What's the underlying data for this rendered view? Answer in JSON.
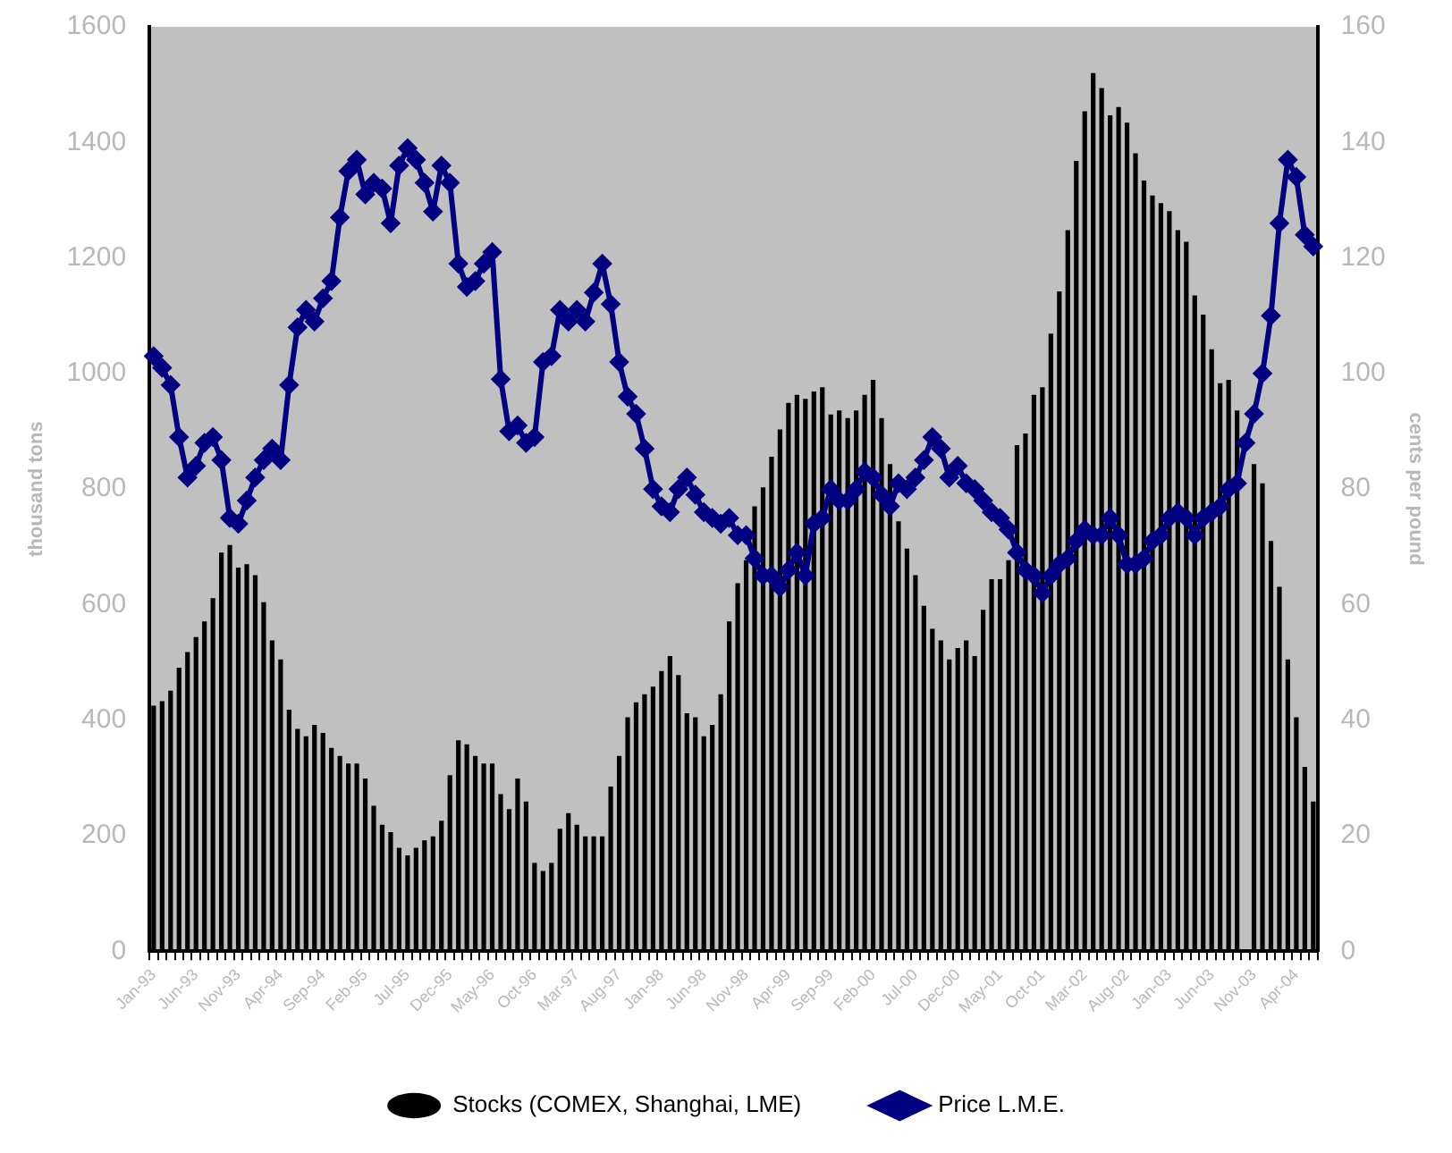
{
  "chart_data": {
    "type": "bar",
    "categories": [
      "Jan-93",
      null,
      null,
      null,
      null,
      "Jun-93",
      null,
      null,
      null,
      null,
      "Nov-93",
      null,
      null,
      null,
      null,
      "Apr-94",
      null,
      null,
      null,
      null,
      "Sep-94",
      null,
      null,
      null,
      null,
      "Feb-95",
      null,
      null,
      null,
      null,
      "Jul-95",
      null,
      null,
      null,
      null,
      "Dec-95",
      null,
      null,
      null,
      null,
      "May-96",
      null,
      null,
      null,
      null,
      "Oct-96",
      null,
      null,
      null,
      null,
      "Mar-97",
      null,
      null,
      null,
      null,
      "Aug-97",
      null,
      null,
      null,
      null,
      "Jan-98",
      null,
      null,
      null,
      null,
      "Jun-98",
      null,
      null,
      null,
      null,
      "Nov-98",
      null,
      null,
      null,
      null,
      "Apr-99",
      null,
      null,
      null,
      null,
      "Sep-99",
      null,
      null,
      null,
      null,
      "Feb-00",
      null,
      null,
      null,
      null,
      "Jul-00",
      null,
      null,
      null,
      null,
      "Dec-00",
      null,
      null,
      null,
      null,
      "May-01",
      null,
      null,
      null,
      null,
      "Oct-01",
      null,
      null,
      null,
      null,
      "Mar-02",
      null,
      null,
      null,
      null,
      "Aug-02",
      null,
      null,
      null,
      null,
      "Jan-03",
      null,
      null,
      null,
      null,
      "Jun-03",
      null,
      null,
      null,
      null,
      "Nov-03",
      null,
      null,
      null,
      null,
      "Apr-04",
      null,
      null
    ],
    "series": [
      {
        "name": "Stocks (COMEX, Shanghai, LME)",
        "color": "#000000",
        "values": [
          425,
          433,
          451,
          491,
          518,
          544,
          571,
          611,
          690,
          703,
          664,
          670,
          651,
          604,
          538,
          505,
          418,
          385,
          372,
          392,
          378,
          352,
          338,
          325,
          325,
          299,
          252,
          219,
          206,
          179,
          166,
          179,
          192,
          199,
          226,
          305,
          365,
          358,
          338,
          325,
          325,
          272,
          246,
          299,
          259,
          153,
          139,
          153,
          212,
          239,
          219,
          199,
          199,
          199,
          285,
          338,
          405,
          431,
          445,
          458,
          485,
          511,
          478,
          412,
          405,
          372,
          392,
          445,
          571,
          637,
          677,
          770,
          803,
          856,
          903,
          949,
          963,
          956,
          969,
          976,
          929,
          936,
          923,
          936,
          963,
          989,
          923,
          843,
          744,
          697,
          651,
          598,
          558,
          538,
          505,
          525,
          538,
          511,
          591,
          644,
          644,
          677,
          876,
          896,
          963,
          976,
          1069,
          1142,
          1248,
          1368,
          1454,
          1520,
          1494,
          1447,
          1461,
          1434,
          1381,
          1334,
          1308,
          1295,
          1281,
          1248,
          1228,
          1135,
          1102,
          1042,
          983,
          989,
          936,
          null,
          843,
          810,
          710,
          631,
          505,
          405,
          319,
          259
        ]
      },
      {
        "name": "Price L.M.E.",
        "type": "line",
        "axis": "y2",
        "color": "#000080",
        "marker": "diamond",
        "values": [
          103,
          101,
          98,
          89,
          82,
          84,
          88,
          89,
          85,
          75,
          74,
          78,
          82,
          85,
          87,
          85,
          98,
          108,
          111,
          109,
          113,
          116,
          127,
          135,
          137,
          131,
          133,
          132,
          126,
          136,
          139,
          137,
          133,
          128,
          136,
          133,
          119,
          115,
          116,
          119,
          121,
          99,
          90,
          91,
          88,
          89,
          102,
          103,
          111,
          109,
          111,
          109,
          114,
          119,
          112,
          102,
          96,
          93,
          87,
          80,
          77,
          76,
          80,
          82,
          79,
          76,
          75,
          74,
          75,
          72,
          72,
          68,
          65,
          65,
          63,
          66,
          69,
          65,
          74,
          75,
          80,
          78,
          78,
          80,
          83,
          82,
          79,
          77,
          81,
          80,
          82,
          85,
          89,
          87,
          82,
          84,
          81,
          80,
          78,
          76,
          75,
          73,
          69,
          66,
          65,
          62,
          65,
          67,
          68,
          71,
          73,
          72,
          72,
          75,
          72,
          67,
          67,
          68,
          71,
          72,
          75,
          76,
          75,
          72,
          75,
          76,
          77,
          80,
          81,
          88,
          93,
          100,
          110,
          126,
          137,
          134,
          124,
          122
        ]
      }
    ],
    "ylabel": "thousand tons",
    "y2label": "cents per pound",
    "ylim": [
      0,
      1600
    ],
    "yticks": [
      0,
      200,
      400,
      600,
      800,
      1000,
      1200,
      1400,
      1600
    ],
    "y2lim": [
      0,
      160
    ],
    "y2ticks": [
      0,
      20,
      40,
      60,
      80,
      100,
      120,
      140,
      160
    ],
    "grid": false,
    "legend": "bottom"
  }
}
